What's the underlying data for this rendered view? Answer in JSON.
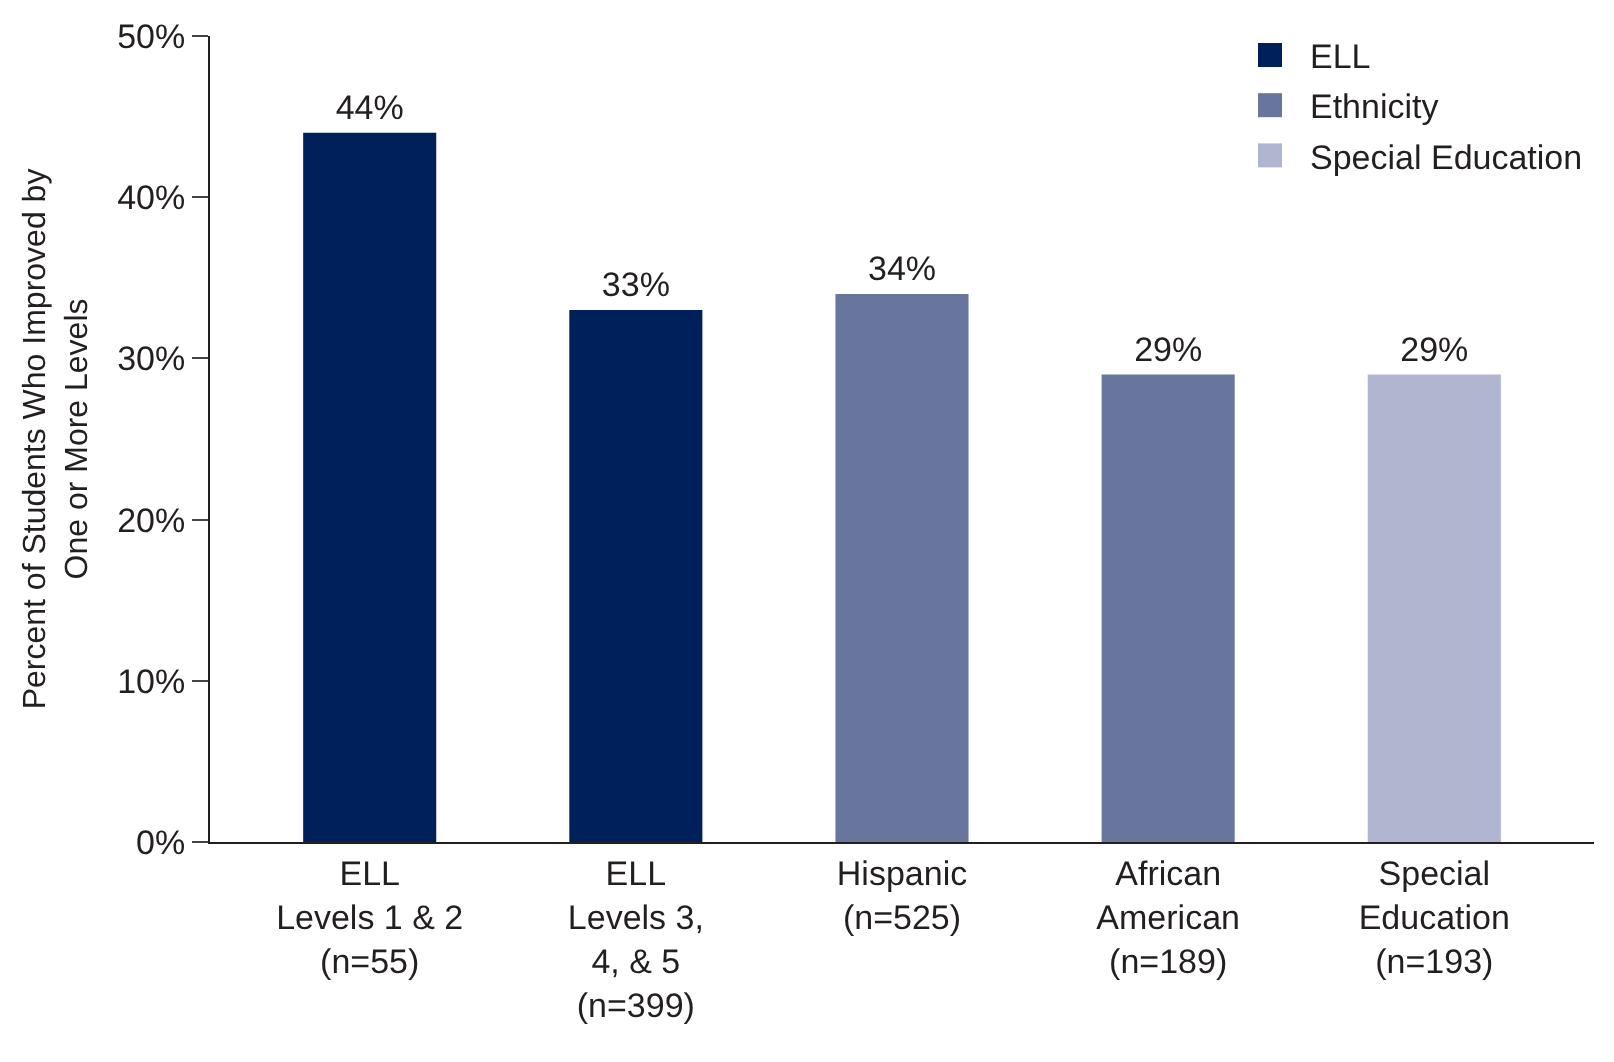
{
  "chart_data": {
    "type": "bar",
    "ylabel": "Percent of Students Who Improved by\nOne or More Levels",
    "categories": [
      "ELL\nLevels 1 & 2\n(n=55)",
      "ELL\nLevels 3,\n4, & 5\n(n=399)",
      "Hispanic\n(n=525)",
      "African\nAmerican\n(n=189)",
      "Special\nEducation\n(n=193)"
    ],
    "series": [
      {
        "name": "ELL",
        "color": "#00205b",
        "values": [
          44,
          33,
          null,
          null,
          null
        ],
        "value_labels": [
          "44%",
          "33%",
          null,
          null,
          null
        ]
      },
      {
        "name": "Ethnicity",
        "color": "#68759c",
        "values": [
          null,
          null,
          34,
          29,
          null
        ],
        "value_labels": [
          null,
          null,
          "34%",
          "29%",
          null
        ]
      },
      {
        "name": "Special Education",
        "color": "#b1b6d0",
        "values": [
          null,
          null,
          null,
          null,
          29
        ],
        "value_labels": [
          null,
          null,
          null,
          null,
          "29%"
        ]
      }
    ],
    "ylim": [
      0,
      50
    ],
    "yticks": [
      {
        "value": 0,
        "label": "0%"
      },
      {
        "value": 10,
        "label": "10%"
      },
      {
        "value": 20,
        "label": "20%"
      },
      {
        "value": 30,
        "label": "30%"
      },
      {
        "value": 40,
        "label": "40%"
      },
      {
        "value": 50,
        "label": "50%"
      }
    ],
    "legend": "top right"
  }
}
